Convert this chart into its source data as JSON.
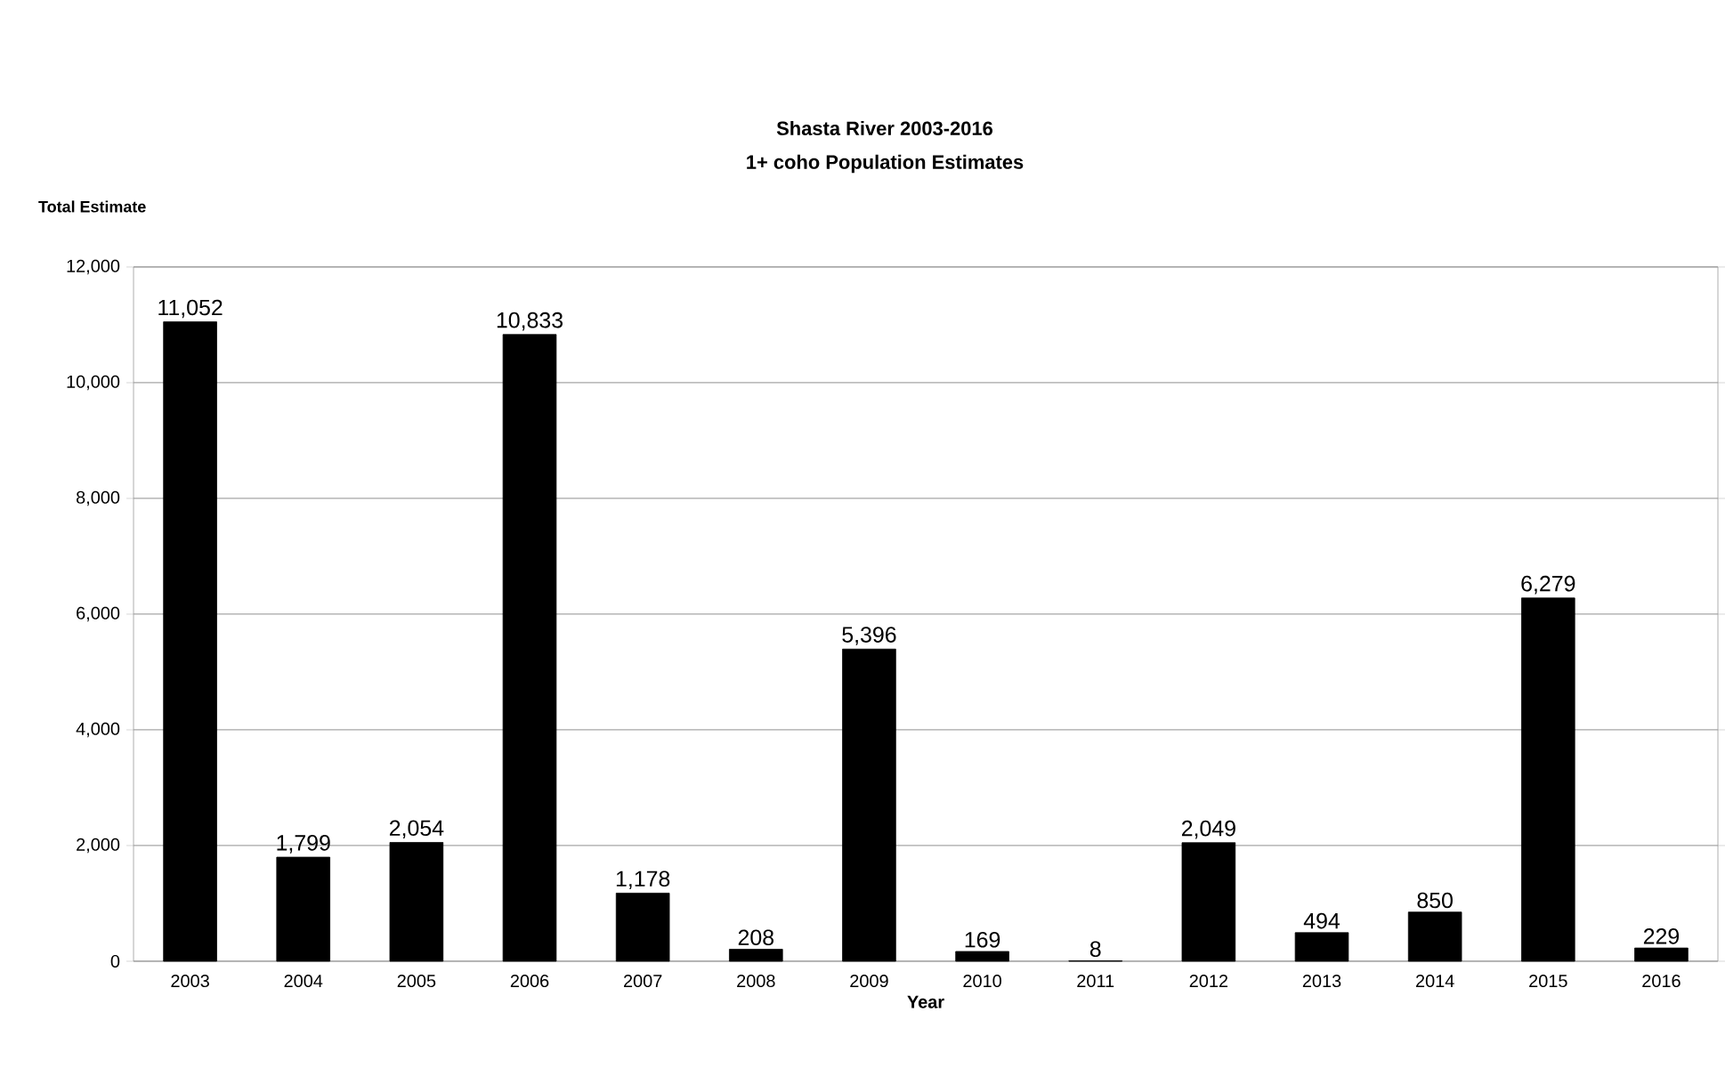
{
  "chart_data": {
    "type": "bar",
    "title": "Shasta River 2003-2016",
    "subtitle": "1+ coho Population Estimates",
    "ylabel": "Total Estimate",
    "xlabel": "Year",
    "categories": [
      "2003",
      "2004",
      "2005",
      "2006",
      "2007",
      "2008",
      "2009",
      "2010",
      "2011",
      "2012",
      "2013",
      "2014",
      "2015",
      "2016"
    ],
    "values": [
      11052,
      1799,
      2054,
      10833,
      1178,
      208,
      5396,
      169,
      8,
      2049,
      494,
      850,
      6279,
      229
    ],
    "value_labels": [
      "11,052",
      "1,799",
      "2,054",
      "10,833",
      "1,178",
      "208",
      "5,396",
      "169",
      "8",
      "2,049",
      "494",
      "850",
      "6,279",
      "229"
    ],
    "color": "#000000",
    "ylim": [
      0,
      12000
    ],
    "yticks": [
      {
        "value": 0,
        "label": "0"
      },
      {
        "value": 2000,
        "label": "2,000"
      },
      {
        "value": 4000,
        "label": "4,000"
      },
      {
        "value": 6000,
        "label": "6,000"
      },
      {
        "value": 8000,
        "label": "8,000"
      },
      {
        "value": 10000,
        "label": "10,000"
      },
      {
        "value": 12000,
        "label": "12,000"
      }
    ],
    "grid": "y",
    "legend": false
  }
}
